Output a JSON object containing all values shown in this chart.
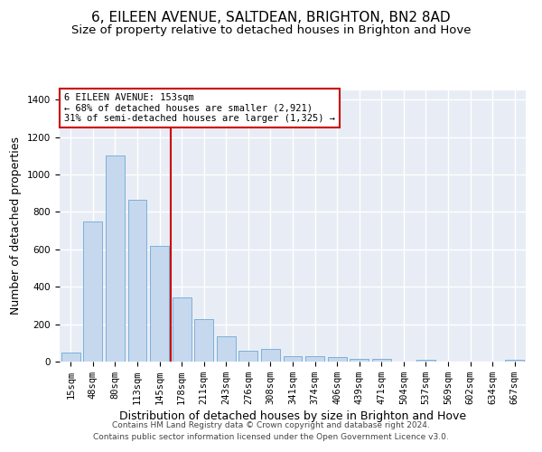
{
  "title": "6, EILEEN AVENUE, SALTDEAN, BRIGHTON, BN2 8AD",
  "subtitle": "Size of property relative to detached houses in Brighton and Hove",
  "xlabel": "Distribution of detached houses by size in Brighton and Hove",
  "ylabel": "Number of detached properties",
  "footer_line1": "Contains HM Land Registry data © Crown copyright and database right 2024.",
  "footer_line2": "Contains public sector information licensed under the Open Government Licence v3.0.",
  "bar_labels": [
    "15sqm",
    "48sqm",
    "80sqm",
    "113sqm",
    "145sqm",
    "178sqm",
    "211sqm",
    "243sqm",
    "276sqm",
    "308sqm",
    "341sqm",
    "374sqm",
    "406sqm",
    "439sqm",
    "471sqm",
    "504sqm",
    "537sqm",
    "569sqm",
    "602sqm",
    "634sqm",
    "667sqm"
  ],
  "bar_values": [
    50,
    750,
    1100,
    865,
    620,
    345,
    225,
    135,
    60,
    70,
    30,
    30,
    25,
    15,
    15,
    0,
    12,
    0,
    0,
    0,
    12
  ],
  "bar_color": "#c5d8ee",
  "bar_edgecolor": "#6fa8d4",
  "bg_color": "#e8edf5",
  "grid_color": "#ffffff",
  "ylim_max": 1450,
  "yticks": [
    0,
    200,
    400,
    600,
    800,
    1000,
    1200,
    1400
  ],
  "red_line_x": 4.5,
  "ann_line1": "6 EILEEN AVENUE: 153sqm",
  "ann_line2": "← 68% of detached houses are smaller (2,921)",
  "ann_line3": "31% of semi-detached houses are larger (1,325) →",
  "red_color": "#cc0000",
  "title_fontsize": 11,
  "subtitle_fontsize": 9.5,
  "tick_fontsize": 7.5,
  "ylabel_fontsize": 9,
  "xlabel_fontsize": 9,
  "ann_fontsize": 7.5,
  "footer_fontsize": 6.5
}
